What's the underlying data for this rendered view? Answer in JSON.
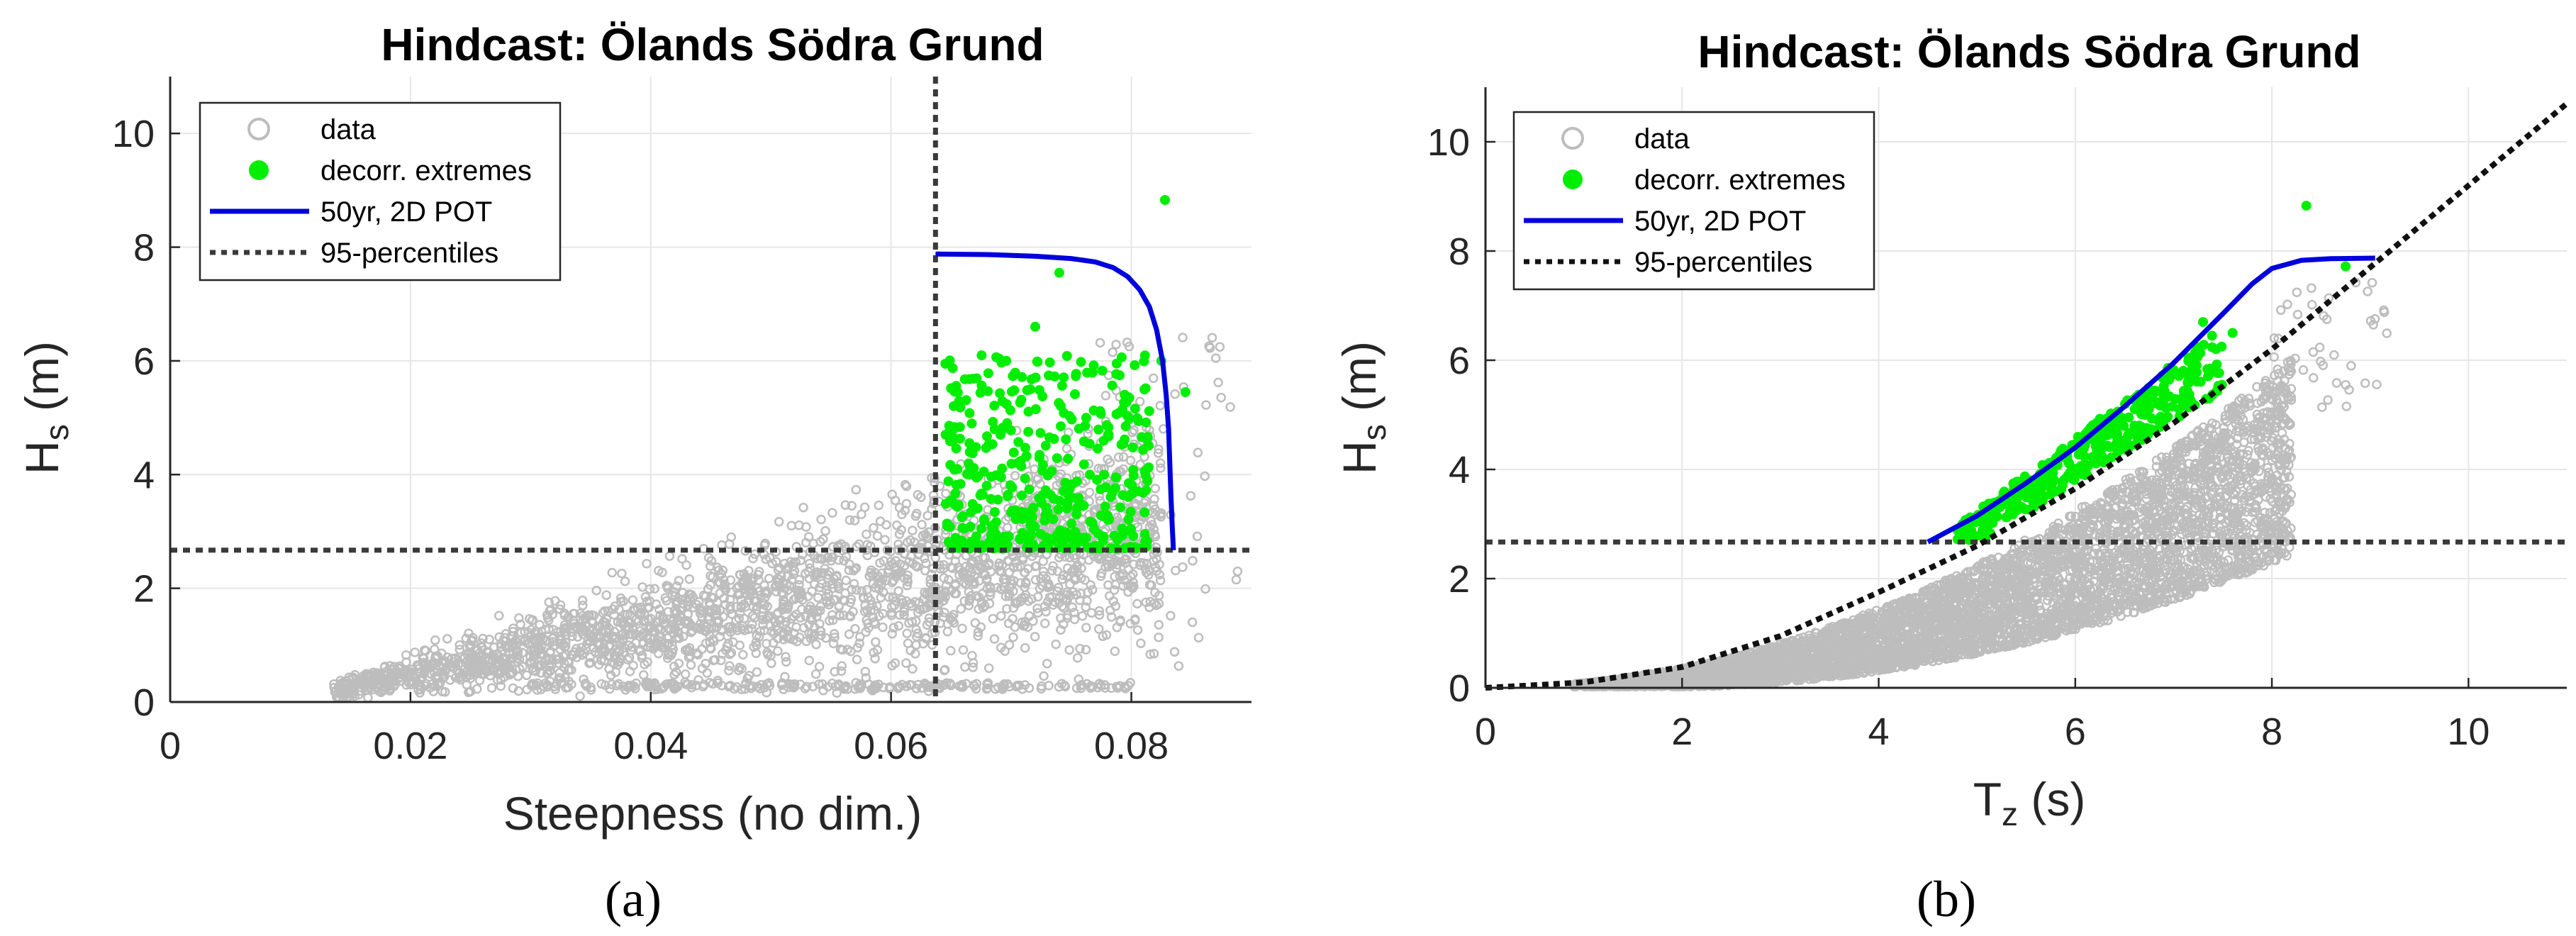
{
  "colors": {
    "data": "#bdbdbd",
    "extremes": "#00ee00",
    "contour": "#0000dd",
    "percentile": "#3a3a3a",
    "grid": "#e6e6e6"
  },
  "chart_data": [
    {
      "type": "scatter",
      "panel_id": "a",
      "caption": "(a)",
      "title": "Hindcast: Ölands Södra Grund",
      "xlabel": "Steepness (no dim.)",
      "ylabel_main": "H",
      "ylabel_sub": "s",
      "ylabel_unit": " (m)",
      "xlim": [
        0,
        0.09
      ],
      "ylim": [
        0,
        11
      ],
      "xticks": [
        0,
        0.02,
        0.04,
        0.06,
        0.08
      ],
      "xtick_labels": [
        "0",
        "0.02",
        "0.04",
        "0.06",
        "0.08"
      ],
      "yticks": [
        0,
        2,
        4,
        6,
        8,
        10
      ],
      "ytick_labels": [
        "0",
        "2",
        "4",
        "6",
        "8",
        "10"
      ],
      "grid": true,
      "legend_position": "top-left",
      "legend": [
        "data",
        "decorr. extremes",
        "50yr, 2D POT",
        "95-percentiles"
      ],
      "percentile_h": 2.67,
      "percentile_v": 0.0637,
      "contour_50yr": {
        "x": [
          0.0637,
          0.068,
          0.072,
          0.075,
          0.077,
          0.0785,
          0.0797,
          0.0807,
          0.0815,
          0.0821,
          0.0826,
          0.0829,
          0.0831,
          0.0832,
          0.0833,
          0.0834,
          0.0835
        ],
        "y": [
          7.88,
          7.87,
          7.84,
          7.8,
          7.74,
          7.64,
          7.48,
          7.25,
          6.95,
          6.55,
          6.0,
          5.4,
          4.8,
          4.2,
          3.6,
          3.1,
          2.67
        ]
      }
    },
    {
      "type": "scatter",
      "panel_id": "b",
      "caption": "(b)",
      "title": "Hindcast: Ölands Södra Grund",
      "xlabel_main": "T",
      "xlabel_sub": "z",
      "xlabel_unit": " (s)",
      "ylabel_main": "H",
      "ylabel_sub": "s",
      "ylabel_unit": " (m)",
      "xlim": [
        0,
        11
      ],
      "ylim": [
        0,
        11
      ],
      "xticks": [
        0,
        2,
        4,
        6,
        8,
        10
      ],
      "xtick_labels": [
        "0",
        "2",
        "4",
        "6",
        "8",
        "10"
      ],
      "yticks": [
        0,
        2,
        4,
        6,
        8,
        10
      ],
      "ytick_labels": [
        "0",
        "2",
        "4",
        "6",
        "8",
        "10"
      ],
      "grid": true,
      "legend_position": "top-left",
      "legend": [
        "data",
        "decorr. extremes",
        "50yr, 2D POT",
        "95-percentiles"
      ],
      "percentile_h": 2.67,
      "percentile_curve": {
        "x": [
          0,
          1,
          2,
          3,
          4,
          5,
          6,
          7,
          8,
          9,
          10,
          11
        ],
        "y": [
          0,
          0.1,
          0.38,
          0.95,
          1.75,
          2.6,
          3.65,
          4.85,
          6.2,
          7.7,
          9.2,
          10.7
        ]
      },
      "contour_50yr": {
        "x": [
          4.5,
          5.0,
          5.5,
          6.0,
          6.5,
          7.0,
          7.5,
          7.8,
          8.0,
          8.3,
          8.6,
          9.05
        ],
        "y": [
          2.67,
          3.15,
          3.75,
          4.4,
          5.15,
          5.95,
          6.85,
          7.4,
          7.68,
          7.83,
          7.86,
          7.87
        ]
      }
    }
  ]
}
